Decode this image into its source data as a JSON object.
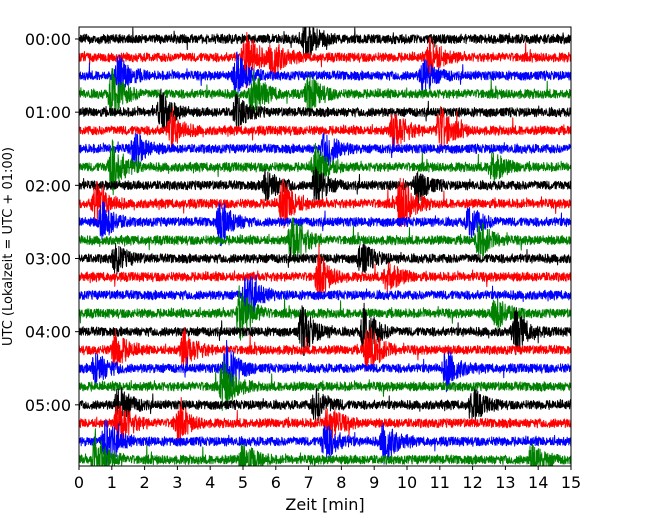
{
  "chart_data": {
    "type": "line",
    "title": "",
    "xlabel": "Zeit  [min]",
    "ylabel": "UTC (Lokalzeit = UTC + 01:00)",
    "xlim": [
      0,
      15
    ],
    "x_ticks": [
      0,
      1,
      2,
      3,
      4,
      5,
      6,
      7,
      8,
      9,
      10,
      11,
      12,
      13,
      14,
      15
    ],
    "y_tick_labels": [
      "00:00",
      "01:00",
      "02:00",
      "03:00",
      "04:00",
      "05:00"
    ],
    "y_tick_rows": [
      0,
      4,
      8,
      12,
      16,
      20
    ],
    "grid": false,
    "legend": "none",
    "colors": [
      "#000000",
      "#ff0000",
      "#0000ff",
      "#008000"
    ],
    "traces": [
      {
        "start": "00:00",
        "color": "#000000",
        "events": [
          [
            6.9,
            0.8
          ]
        ]
      },
      {
        "start": "00:15",
        "color": "#ff0000",
        "events": [
          [
            5.1,
            1.0
          ],
          [
            5.9,
            0.7
          ],
          [
            10.7,
            0.7
          ]
        ]
      },
      {
        "start": "00:30",
        "color": "#0000ff",
        "events": [
          [
            1.2,
            0.7
          ],
          [
            4.8,
            0.8
          ],
          [
            10.5,
            0.6
          ]
        ]
      },
      {
        "start": "00:45",
        "color": "#008000",
        "events": [
          [
            1.0,
            0.9
          ],
          [
            5.3,
            0.8
          ],
          [
            7.0,
            0.7
          ]
        ]
      },
      {
        "start": "01:00",
        "color": "#000000",
        "events": [
          [
            2.5,
            0.7
          ],
          [
            4.8,
            0.6
          ]
        ]
      },
      {
        "start": "01:15",
        "color": "#ff0000",
        "events": [
          [
            2.8,
            0.6
          ],
          [
            9.6,
            0.8
          ],
          [
            11.0,
            0.9
          ]
        ]
      },
      {
        "start": "01:30",
        "color": "#0000ff",
        "events": [
          [
            1.7,
            0.6
          ],
          [
            7.5,
            0.7
          ]
        ]
      },
      {
        "start": "01:45",
        "color": "#008000",
        "events": [
          [
            1.0,
            1.0
          ],
          [
            7.2,
            0.8
          ],
          [
            12.6,
            0.6
          ]
        ]
      },
      {
        "start": "02:00",
        "color": "#000000",
        "events": [
          [
            5.7,
            0.6
          ],
          [
            7.2,
            0.7
          ],
          [
            10.3,
            0.6
          ]
        ]
      },
      {
        "start": "02:15",
        "color": "#ff0000",
        "events": [
          [
            0.5,
            0.8
          ],
          [
            6.2,
            0.9
          ],
          [
            9.8,
            1.1
          ]
        ]
      },
      {
        "start": "02:30",
        "color": "#0000ff",
        "events": [
          [
            0.7,
            0.7
          ],
          [
            4.3,
            0.8
          ],
          [
            11.9,
            0.6
          ]
        ]
      },
      {
        "start": "02:45",
        "color": "#008000",
        "events": [
          [
            6.5,
            1.1
          ],
          [
            12.2,
            0.7
          ]
        ]
      },
      {
        "start": "03:00",
        "color": "#000000",
        "events": [
          [
            1.1,
            0.5
          ],
          [
            8.6,
            0.6
          ]
        ]
      },
      {
        "start": "03:15",
        "color": "#ff0000",
        "events": [
          [
            7.3,
            0.7
          ],
          [
            9.4,
            0.6
          ]
        ]
      },
      {
        "start": "03:30",
        "color": "#0000ff",
        "events": [
          [
            5.1,
            0.9
          ]
        ]
      },
      {
        "start": "03:45",
        "color": "#008000",
        "events": [
          [
            4.9,
            1.0
          ],
          [
            12.7,
            0.6
          ]
        ]
      },
      {
        "start": "04:00",
        "color": "#000000",
        "events": [
          [
            6.8,
            0.9
          ],
          [
            8.7,
            1.0
          ],
          [
            13.3,
            0.8
          ]
        ]
      },
      {
        "start": "04:15",
        "color": "#ff0000",
        "events": [
          [
            1.1,
            0.7
          ],
          [
            3.2,
            0.7
          ],
          [
            8.8,
            1.0
          ]
        ]
      },
      {
        "start": "04:30",
        "color": "#0000ff",
        "events": [
          [
            0.5,
            0.6
          ],
          [
            4.5,
            0.9
          ],
          [
            11.2,
            0.7
          ]
        ]
      },
      {
        "start": "04:45",
        "color": "#008000",
        "events": [
          [
            4.4,
            0.9
          ]
        ]
      },
      {
        "start": "05:00",
        "color": "#000000",
        "events": [
          [
            1.2,
            0.7
          ],
          [
            7.2,
            0.6
          ],
          [
            12.0,
            0.6
          ]
        ]
      },
      {
        "start": "05:15",
        "color": "#ff0000",
        "events": [
          [
            1.2,
            0.9
          ],
          [
            3.0,
            0.6
          ],
          [
            7.6,
            0.7
          ]
        ]
      },
      {
        "start": "05:30",
        "color": "#0000ff",
        "events": [
          [
            0.8,
            0.9
          ],
          [
            7.5,
            0.7
          ],
          [
            9.3,
            0.8
          ]
        ]
      },
      {
        "start": "05:45",
        "color": "#008000",
        "events": [
          [
            0.5,
            1.0
          ],
          [
            5.0,
            0.7
          ],
          [
            13.8,
            0.6
          ]
        ]
      }
    ]
  }
}
